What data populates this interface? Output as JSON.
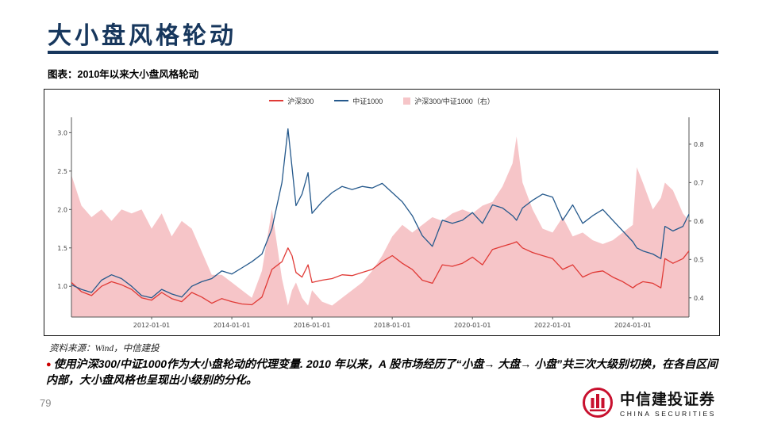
{
  "slide": {
    "title": "大小盘风格轮动",
    "figure_caption": "图表：2010年以来大小盘风格轮动",
    "source_note": "资料来源：Wind，中信建投",
    "bullet_marker": "●",
    "bullet_text": "使用沪深300/中证1000作为大小盘轮动的代理变量. 2010 年以来，A 股市场经历了“小盘→ 大盘→ 小盘”共三次大级别切换，在各自区间内部，大小盘风格也呈现出小级别的分化。",
    "page_number": "79",
    "accent_color": "#17375d",
    "logo": {
      "cn": "中信建投证券",
      "en": "CHINA SECURITIES",
      "color": "#c8102e"
    }
  },
  "chart_data": {
    "type": "line",
    "title": "2010年以来大小盘风格轮动",
    "xlabel": "",
    "ylabel": "",
    "grid": false,
    "legend_position": "top",
    "x_unit": "year",
    "x": [
      2010.0,
      2010.25,
      2010.5,
      2010.75,
      2011.0,
      2011.25,
      2011.5,
      2011.75,
      2012.0,
      2012.25,
      2012.5,
      2012.75,
      2013.0,
      2013.25,
      2013.5,
      2013.75,
      2014.0,
      2014.25,
      2014.5,
      2014.75,
      2015.0,
      2015.25,
      2015.4,
      2015.5,
      2015.6,
      2015.75,
      2015.9,
      2016.0,
      2016.25,
      2016.5,
      2016.75,
      2017.0,
      2017.25,
      2017.5,
      2017.75,
      2018.0,
      2018.25,
      2018.5,
      2018.75,
      2019.0,
      2019.25,
      2019.5,
      2019.75,
      2020.0,
      2020.25,
      2020.5,
      2020.75,
      2021.0,
      2021.1,
      2021.25,
      2021.5,
      2021.75,
      2022.0,
      2022.25,
      2022.5,
      2022.75,
      2023.0,
      2023.25,
      2023.5,
      2023.75,
      2024.0,
      2024.1,
      2024.25,
      2024.5,
      2024.7,
      2024.8,
      2025.0,
      2025.25,
      2025.4
    ],
    "series": [
      {
        "key": "hs300",
        "name": "沪深300",
        "type": "line",
        "axis": "left",
        "color": "#e03a36",
        "values": [
          1.05,
          0.93,
          0.88,
          1.0,
          1.06,
          1.02,
          0.96,
          0.85,
          0.82,
          0.92,
          0.84,
          0.8,
          0.92,
          0.86,
          0.78,
          0.84,
          0.8,
          0.77,
          0.76,
          0.86,
          1.22,
          1.32,
          1.5,
          1.4,
          1.18,
          1.12,
          1.28,
          1.05,
          1.08,
          1.1,
          1.15,
          1.14,
          1.18,
          1.22,
          1.32,
          1.4,
          1.3,
          1.22,
          1.08,
          1.04,
          1.28,
          1.26,
          1.3,
          1.38,
          1.28,
          1.48,
          1.52,
          1.56,
          1.58,
          1.5,
          1.44,
          1.4,
          1.36,
          1.22,
          1.28,
          1.12,
          1.18,
          1.2,
          1.12,
          1.06,
          0.98,
          1.02,
          1.06,
          1.04,
          0.98,
          1.36,
          1.3,
          1.36,
          1.46
        ]
      },
      {
        "key": "zz1000",
        "name": "中证1000",
        "type": "line",
        "axis": "left",
        "color": "#25598c",
        "values": [
          1.02,
          0.96,
          0.92,
          1.08,
          1.15,
          1.1,
          1.0,
          0.88,
          0.85,
          0.96,
          0.9,
          0.86,
          1.0,
          1.06,
          1.1,
          1.2,
          1.16,
          1.24,
          1.32,
          1.42,
          1.75,
          2.35,
          3.05,
          2.55,
          2.05,
          2.2,
          2.48,
          1.95,
          2.1,
          2.22,
          2.3,
          2.26,
          2.3,
          2.28,
          2.34,
          2.22,
          2.1,
          1.92,
          1.66,
          1.52,
          1.86,
          1.82,
          1.86,
          1.96,
          1.82,
          2.06,
          2.02,
          1.92,
          1.86,
          2.02,
          2.12,
          2.2,
          2.16,
          1.86,
          2.06,
          1.82,
          1.92,
          2.0,
          1.86,
          1.72,
          1.58,
          1.5,
          1.46,
          1.42,
          1.36,
          1.78,
          1.72,
          1.78,
          1.94
        ]
      },
      {
        "key": "ratio",
        "name": "沪深300/中证1000（右）",
        "type": "area",
        "axis": "right",
        "color": "#f6c5c8",
        "values": [
          0.72,
          0.64,
          0.61,
          0.63,
          0.6,
          0.63,
          0.62,
          0.63,
          0.58,
          0.62,
          0.56,
          0.6,
          0.58,
          0.52,
          0.46,
          0.46,
          0.44,
          0.42,
          0.4,
          0.47,
          0.63,
          0.45,
          0.38,
          0.42,
          0.44,
          0.4,
          0.38,
          0.42,
          0.39,
          0.38,
          0.4,
          0.42,
          0.44,
          0.47,
          0.51,
          0.56,
          0.59,
          0.57,
          0.59,
          0.61,
          0.6,
          0.62,
          0.63,
          0.62,
          0.64,
          0.65,
          0.69,
          0.75,
          0.82,
          0.7,
          0.63,
          0.58,
          0.57,
          0.61,
          0.56,
          0.57,
          0.55,
          0.54,
          0.55,
          0.57,
          0.59,
          0.74,
          0.7,
          0.63,
          0.66,
          0.7,
          0.68,
          0.62,
          0.6
        ]
      }
    ],
    "left_axis": {
      "ticks": [
        1.0,
        1.5,
        2.0,
        2.5,
        3.0
      ],
      "range": [
        0.6,
        3.2
      ]
    },
    "right_axis": {
      "ticks": [
        0.4,
        0.5,
        0.6,
        0.7,
        0.8
      ],
      "range": [
        0.35,
        0.87
      ]
    },
    "x_ticks": [
      "2012-01-01",
      "2014-01-01",
      "2016-01-01",
      "2018-01-01",
      "2020-01-01",
      "2022-01-01",
      "2024-01-01"
    ],
    "x_tick_years": [
      2012,
      2014,
      2016,
      2018,
      2020,
      2022,
      2024
    ]
  }
}
